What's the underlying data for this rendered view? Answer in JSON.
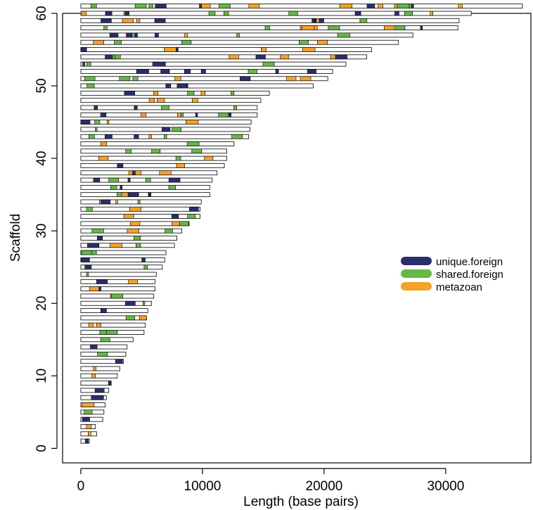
{
  "chart_data": {
    "type": "gantt-scaffold",
    "xlabel": "Length (base pairs)",
    "ylabel": "Scaffold",
    "xlim": [
      -1500,
      37000
    ],
    "ylim": [
      -2,
      60
    ],
    "x_ticks": [
      0,
      10000,
      20000,
      30000
    ],
    "y_ticks": [
      0,
      10,
      20,
      30,
      40,
      50,
      60
    ],
    "legend": {
      "position": "right",
      "entries": [
        {
          "name": "unique.foreign",
          "color": "#2b2d6e"
        },
        {
          "name": "shared.foreign",
          "color": "#66b845"
        },
        {
          "name": "metazoan",
          "color": "#f5a12a"
        }
      ]
    },
    "scaffold_lengths": [
      700,
      1300,
      1200,
      1800,
      1900,
      2000,
      2100,
      2300,
      2500,
      3000,
      3200,
      3500,
      3700,
      3800,
      4300,
      5200,
      5300,
      5400,
      5500,
      5800,
      6000,
      6100,
      6100,
      6200,
      6700,
      6900,
      7000,
      7700,
      7900,
      8300,
      8900,
      9800,
      9800,
      9900,
      10600,
      10600,
      10800,
      11200,
      11800,
      12000,
      12000,
      12600,
      13800,
      13900,
      14000,
      14500,
      14500,
      14800,
      15500,
      19100,
      20300,
      20700,
      21800,
      23500,
      23900,
      26100,
      27300,
      31000,
      31100,
      32100,
      36300
    ]
  }
}
